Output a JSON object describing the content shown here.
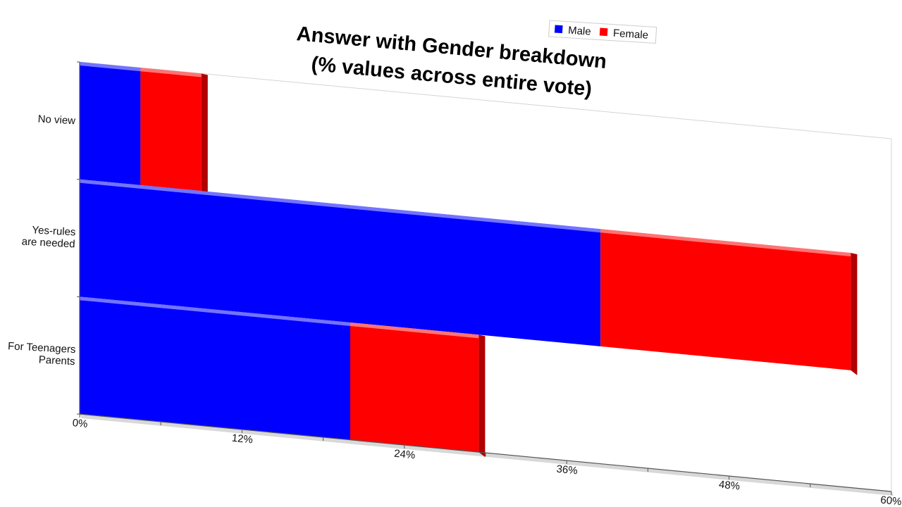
{
  "chart_data": {
    "type": "bar",
    "orientation": "horizontal",
    "stacked": true,
    "title": [
      "Answer with Gender breakdown",
      "(% values across entire vote)"
    ],
    "categories": [
      [
        "No view"
      ],
      [
        "Yes-rules",
        "are needed"
      ],
      [
        "For Teenagers",
        "Parents"
      ]
    ],
    "series": [
      {
        "name": "Male",
        "color": "#0000ff",
        "values": [
          4.5,
          38.5,
          20
        ]
      },
      {
        "name": "Female",
        "color": "#ff0000",
        "values": [
          4.5,
          18.5,
          9.5
        ]
      }
    ],
    "xlim": [
      0,
      60
    ],
    "xticks": [
      "0%",
      "12%",
      "24%",
      "36%",
      "48%",
      "60%"
    ],
    "legend": "top-right",
    "grid": false
  }
}
